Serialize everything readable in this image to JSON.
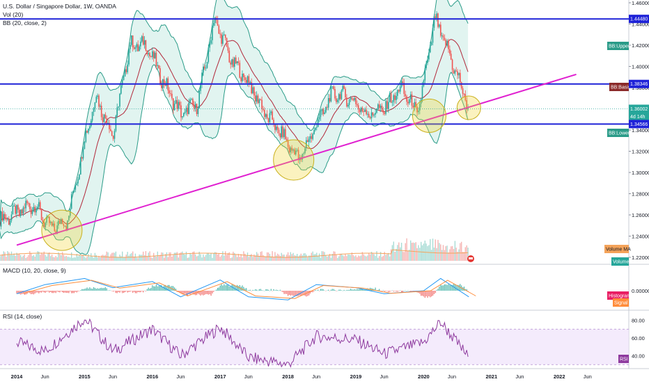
{
  "header": {
    "symbol": "U.S. Dollar / Singapore Dollar, 1W, OANDA",
    "vol": "Vol (20)",
    "bb": "BB (20, close, 2)",
    "macd": "MACD (10, 20, close, 9)",
    "rsi": "RSI (14, close)"
  },
  "colors": {
    "hline": "#1e22d8",
    "trend": "#e020d0",
    "bb_fill": "#d4efe9",
    "bb_band": "#2a9b88",
    "bb_basis": "#b2283a",
    "candle_up": "#26a69a",
    "candle_down": "#ef5350",
    "macd": "#2196f3",
    "signal": "#ff8c3a",
    "rsi": "#8e3a9e",
    "rsi_band": "#efe2fb",
    "circle": "#f2d52a"
  },
  "price_axis": {
    "ticks": [
      "1.46000",
      "1.44000",
      "1.42000",
      "1.40000",
      "1.38000",
      "1.36000",
      "1.34000",
      "1.32000",
      "1.30000",
      "1.28000",
      "1.26000",
      "1.24000",
      "1.22000"
    ]
  },
  "macd_axis": {
    "ticks": [
      "0.00000"
    ]
  },
  "rsi_axis": {
    "ticks": [
      "80.00",
      "60.00",
      "40.00"
    ]
  },
  "time_axis": {
    "labels": [
      "2014",
      "Jun",
      "2015",
      "Jun",
      "2016",
      "Jun",
      "2017",
      "Jun",
      "2018",
      "Jun",
      "2019",
      "Jun",
      "2020",
      "Jun",
      "2021",
      "Jun",
      "2022",
      "Jun"
    ]
  },
  "tags": {
    "hline_upper": "1.44480",
    "bb_upper": "BB:Upper",
    "bb_basis": "BB:Basis",
    "hline_mid": "1.38346",
    "last_price": "1.36002",
    "countdown": "4d 14h",
    "bb_lower": "BB:Lower",
    "hline_lower": "1.34566",
    "volume_ma": "Volume MA",
    "volume": "Volume",
    "histogram": "Histogram",
    "signal": "Signal",
    "rsi": "RSI"
  },
  "chart_data": {
    "type": "line",
    "series_desc": "weekly USD/SGD close with Bollinger Bands, volume, MACD and RSI",
    "horizontal_levels": [
      1.4448,
      1.38346,
      1.34566
    ],
    "last_price": 1.36002,
    "ylim": [
      1.215,
      1.465
    ],
    "trendline": [
      [
        "2014-01",
        1.2315
      ],
      [
        "2022-04",
        1.3925
      ]
    ],
    "highlight_circles": [
      [
        "2014-09",
        1.2455
      ],
      [
        "2018-02",
        1.3118
      ],
      [
        "2020-02",
        1.3535
      ],
      [
        "2020-09",
        1.361
      ]
    ],
    "price": {
      "x": [
        "2013-10",
        "2014-01",
        "2014-04",
        "2014-07",
        "2014-10",
        "2015-01",
        "2015-03",
        "2015-06",
        "2015-09",
        "2015-12",
        "2016-03",
        "2016-06",
        "2016-09",
        "2016-12",
        "2017-03",
        "2017-06",
        "2017-09",
        "2017-12",
        "2018-03",
        "2018-06",
        "2018-09",
        "2018-12",
        "2019-03",
        "2019-06",
        "2019-09",
        "2019-12",
        "2020-03",
        "2020-06",
        "2020-09"
      ],
      "values": [
        1.255,
        1.262,
        1.27,
        1.247,
        1.255,
        1.33,
        1.372,
        1.335,
        1.42,
        1.42,
        1.385,
        1.355,
        1.365,
        1.445,
        1.405,
        1.385,
        1.355,
        1.335,
        1.312,
        1.345,
        1.375,
        1.37,
        1.355,
        1.36,
        1.38,
        1.355,
        1.445,
        1.405,
        1.36
      ]
    },
    "macd": {
      "x": [
        "2014-01",
        "2014-06",
        "2015-01",
        "2015-06",
        "2016-01",
        "2016-06",
        "2017-01",
        "2017-06",
        "2018-01",
        "2018-06",
        "2019-01",
        "2019-06",
        "2020-01",
        "2020-04",
        "2020-09"
      ],
      "values": [
        -0.002,
        0.004,
        0.008,
        0.002,
        0.006,
        -0.004,
        0.007,
        -0.004,
        -0.006,
        0.004,
        0.002,
        -0.002,
        0.0,
        0.008,
        -0.004
      ]
    },
    "rsi": {
      "x": [
        "2014-01",
        "2014-06",
        "2015-01",
        "2015-06",
        "2016-01",
        "2016-06",
        "2017-01",
        "2017-06",
        "2018-01",
        "2018-06",
        "2019-01",
        "2019-06",
        "2020-01",
        "2020-04",
        "2020-09"
      ],
      "values": [
        55,
        45,
        82,
        45,
        70,
        40,
        72,
        38,
        30,
        62,
        58,
        42,
        55,
        78,
        38
      ],
      "ylim": [
        25,
        90
      ],
      "bands": [
        30,
        70
      ]
    }
  }
}
